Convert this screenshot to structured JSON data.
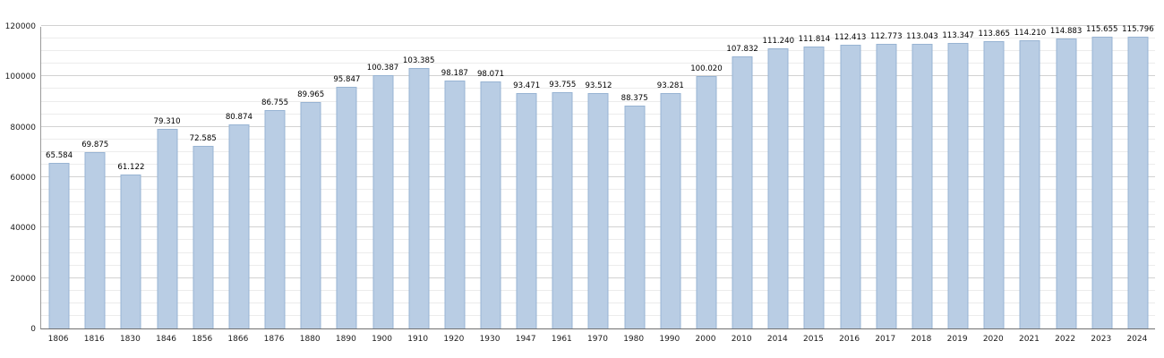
{
  "chart_data": {
    "type": "bar",
    "title": "",
    "xlabel": "",
    "ylabel": "",
    "categories": [
      "1806",
      "1816",
      "1830",
      "1846",
      "1856",
      "1866",
      "1876",
      "1880",
      "1890",
      "1900",
      "1910",
      "1920",
      "1930",
      "1947",
      "1961",
      "1970",
      "1980",
      "1990",
      "2000",
      "2010",
      "2014",
      "2015",
      "2016",
      "2017",
      "2018",
      "2019",
      "2020",
      "2021",
      "2022",
      "2023",
      "2024"
    ],
    "values": [
      65584,
      69875,
      61122,
      79310,
      72585,
      80874,
      86755,
      89965,
      95847,
      100387,
      103385,
      98187,
      98071,
      93471,
      93755,
      93512,
      88375,
      93281,
      100020,
      107832,
      111240,
      111814,
      112413,
      112773,
      113043,
      113347,
      113865,
      114210,
      114883,
      115655,
      115796
    ],
    "value_labels": [
      "65.584",
      "69.875",
      "61.122",
      "79.310",
      "72.585",
      "80.874",
      "86.755",
      "89.965",
      "95.847",
      "100.387",
      "103.385",
      "98.187",
      "98.071",
      "93.471",
      "93.755",
      "93.512",
      "88.375",
      "93.281",
      "100.020",
      "107.832",
      "111.240",
      "111.814",
      "112.413",
      "112.773",
      "113.043",
      "113.347",
      "113.865",
      "114.210",
      "114.883",
      "115.655",
      "115.796"
    ],
    "ylim": [
      0,
      120000
    ],
    "yticks": [
      0,
      20000,
      40000,
      60000,
      80000,
      100000,
      120000
    ],
    "ytick_labels": [
      "0",
      "20000",
      "40000",
      "60000",
      "80000",
      "100000",
      "120000"
    ],
    "minor_grid_step": 5000,
    "major_grid_step": 20000,
    "grid": true,
    "legend": "none",
    "bar_color": "#b9cde4",
    "bar_border_color": "#98b4d3"
  }
}
